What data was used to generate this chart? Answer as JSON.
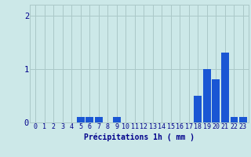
{
  "hours": [
    0,
    1,
    2,
    3,
    4,
    5,
    6,
    7,
    8,
    9,
    10,
    11,
    12,
    13,
    14,
    15,
    16,
    17,
    18,
    19,
    20,
    21,
    22,
    23
  ],
  "values": [
    0,
    0,
    0,
    0,
    0,
    0.1,
    0.1,
    0.1,
    0,
    0.1,
    0,
    0,
    0,
    0,
    0,
    0,
    0,
    0,
    0.5,
    1.0,
    0.8,
    1.3,
    0.1,
    0.1
  ],
  "bar_color": "#1a56d4",
  "background_color": "#cce8e8",
  "grid_color": "#aac8c8",
  "axis_color": "#00008b",
  "xlabel": "Précipitations 1h ( mm )",
  "ylim": [
    0,
    2.2
  ],
  "yticks": [
    0,
    1,
    2
  ],
  "xlabel_fontsize": 7,
  "tick_fontsize": 6
}
